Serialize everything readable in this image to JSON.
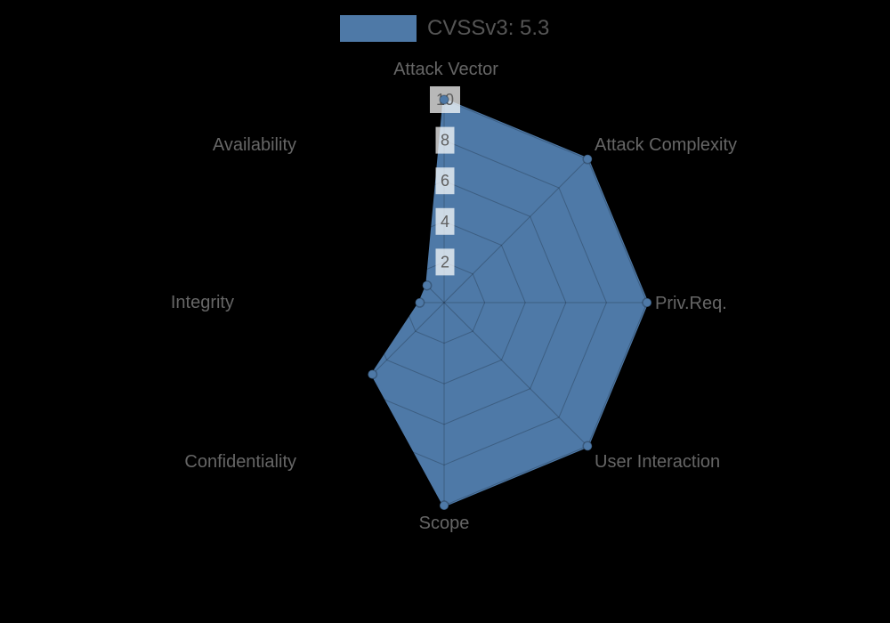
{
  "background_color": "#000000",
  "legend": {
    "label": "CVSSv3: 5.3",
    "swatch_color": "#4e79a7"
  },
  "chart_data": {
    "type": "radar",
    "title": "CVSSv3: 5.3",
    "axes": [
      "Attack Vector",
      "Attack Complexity",
      "Priv.Req.",
      "User Interaction",
      "Scope",
      "Confidentiality",
      "Integrity",
      "Availability"
    ],
    "series": [
      {
        "name": "CVSSv3: 5.3",
        "color": "#4e79a7",
        "values": [
          10,
          10,
          10,
          10,
          10,
          5,
          1.2,
          1.2
        ]
      }
    ],
    "rmin": 0,
    "rmax": 10,
    "tick_values": [
      2,
      4,
      6,
      8,
      10
    ],
    "grid": true,
    "legend_position": "top-center",
    "style": {
      "axis_label_color": "#666666",
      "tick_label_color": "#5f5f5f",
      "tick_box_color": "rgba(255,255,255,0.72)",
      "grid_line_color": "rgba(0,0,0,0.22)",
      "marker_ring_color": "rgba(0,0,0,0.25)"
    }
  }
}
